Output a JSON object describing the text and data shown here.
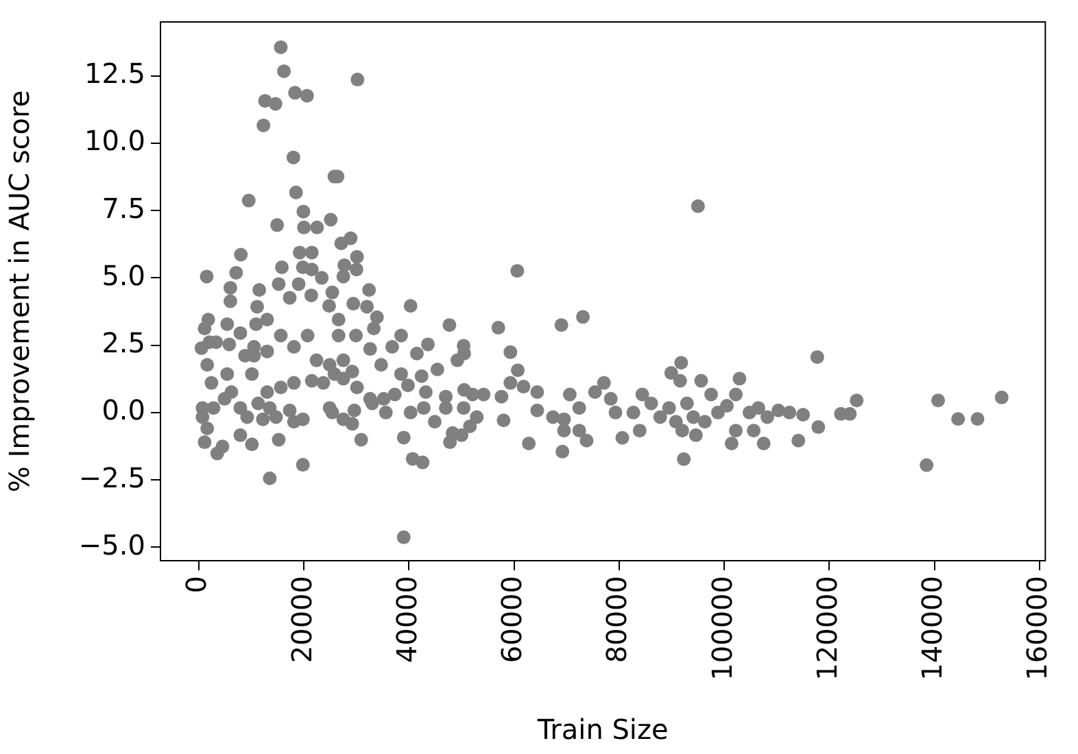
{
  "chart_data": {
    "type": "scatter",
    "xlabel": "Train Size",
    "ylabel": "% Improvement in AUC score",
    "xlim": [
      -7300,
      161100
    ],
    "ylim": [
      -5.5,
      14.5
    ],
    "xticks": [
      0,
      20000,
      40000,
      60000,
      80000,
      100000,
      120000,
      140000,
      160000
    ],
    "yticks": [
      {
        "value": -5,
        "label": "−5.0"
      },
      {
        "value": -2.5,
        "label": "−2.5"
      },
      {
        "value": 0,
        "label": "0.0"
      },
      2.5,
      {
        "value": 5,
        "label": "5.0"
      },
      7.5,
      {
        "value": 10,
        "label": "10.0"
      },
      12.5
    ],
    "grid": false,
    "legend": false,
    "marker": "circle",
    "series": [
      {
        "color": "#808080",
        "x": [
          15600,
          16200,
          30200,
          12600,
          14600,
          18300,
          20600,
          12300,
          18000,
          25800,
          26400,
          9500,
          18500,
          19900,
          14900,
          20000,
          22500,
          25100,
          27100,
          28900,
          8000,
          19200,
          21500,
          30100,
          1500,
          7100,
          15800,
          19800,
          21500,
          27700,
          30000,
          6000,
          6000,
          11500,
          11100,
          15200,
          17300,
          19000,
          21400,
          23400,
          25400,
          27500,
          32400,
          24800,
          29400,
          32000,
          40300,
          47700,
          33900,
          33300,
          26600,
          26600,
          29900,
          38500,
          1800,
          1100,
          5400,
          7900,
          10900,
          13000,
          15600,
          18100,
          20700,
          500,
          2000,
          3300,
          5800,
          8800,
          10500,
          13000,
          10500,
          32600,
          36800,
          43600,
          50500,
          41500,
          1600,
          10100,
          22400,
          24900,
          27500,
          29200,
          34700,
          38500,
          42400,
          45400,
          49200,
          2400,
          5400,
          13000,
          15600,
          18100,
          21500,
          23700,
          25800,
          27500,
          30100,
          32600,
          35200,
          37300,
          39800,
          43200,
          47000,
          50500,
          700,
          700,
          2800,
          4900,
          6200,
          7900,
          9200,
          11300,
          13500,
          14700,
          17300,
          19800,
          25400,
          27500,
          29600,
          33000,
          35600,
          40300,
          42800,
          44900,
          47000,
          48300,
          50000,
          1600,
          1100,
          4500,
          3500,
          7900,
          10100,
          15200,
          12200,
          18100,
          24900,
          29200,
          30900,
          19800,
          13500,
          39000,
          40700,
          42600,
          39000,
          95000,
          60600,
          57000,
          69000,
          73100,
          50400,
          59300,
          60700,
          59300,
          61800,
          64400,
          91800,
          89900,
          91600,
          95600,
          102900,
          117700,
          125200,
          122200,
          123900,
          140700,
          144500,
          148200,
          152800,
          138500,
          117900,
          114100,
          107500,
          101400,
          92300,
          80600,
          73800,
          69200,
          62800,
          58000,
          50400,
          52100,
          54200,
          47800,
          51600,
          52900,
          57600,
          64400,
          67400,
          69500,
          69500,
          70600,
          72400,
          72400,
          75400,
          77100,
          78400,
          79300,
          82700,
          84400,
          86100,
          83900,
          87800,
          89500,
          90800,
          92000,
          92900,
          94100,
          94600,
          96300,
          97500,
          98800,
          100500,
          102200,
          102200,
          104800,
          105600,
          106500,
          108200,
          110300,
          112400,
          115000
        ],
        "values": [
          13.56,
          12.67,
          12.36,
          11.57,
          11.46,
          11.87,
          11.76,
          10.66,
          9.47,
          8.76,
          8.76,
          7.87,
          8.17,
          7.46,
          6.96,
          6.87,
          6.87,
          7.16,
          6.28,
          6.47,
          5.86,
          5.94,
          5.94,
          5.78,
          5.05,
          5.19,
          5.39,
          5.39,
          5.31,
          5.47,
          5.31,
          4.63,
          4.13,
          4.55,
          3.93,
          4.77,
          4.26,
          4.77,
          4.35,
          5.0,
          4.46,
          5.05,
          4.55,
          3.96,
          4.04,
          3.93,
          3.96,
          3.25,
          3.54,
          3.12,
          3.45,
          2.86,
          2.86,
          2.86,
          3.45,
          3.12,
          3.28,
          2.95,
          3.28,
          3.45,
          2.86,
          2.44,
          2.86,
          2.39,
          2.61,
          2.61,
          2.53,
          2.11,
          2.44,
          2.27,
          2.11,
          2.36,
          2.44,
          2.53,
          2.19,
          2.19,
          1.77,
          1.43,
          1.94,
          1.77,
          1.94,
          1.52,
          1.77,
          1.43,
          1.35,
          1.6,
          1.94,
          1.1,
          1.43,
          0.76,
          0.93,
          1.1,
          1.18,
          1.1,
          1.43,
          1.26,
          0.93,
          0.51,
          0.51,
          0.67,
          1.01,
          0.76,
          0.59,
          0.84,
          0.17,
          -0.17,
          0.17,
          0.51,
          0.76,
          0.17,
          -0.17,
          0.34,
          0.17,
          -0.17,
          0.08,
          -0.25,
          0.0,
          -0.25,
          0.08,
          0.34,
          0.0,
          0.0,
          0.17,
          -0.34,
          0.17,
          -0.76,
          -0.84,
          -0.59,
          -1.1,
          -1.26,
          -1.52,
          -0.84,
          -1.18,
          -1.01,
          -0.25,
          -0.34,
          0.17,
          -0.42,
          -1.01,
          -1.94,
          -2.44,
          -0.93,
          -1.72,
          -1.85,
          -4.63,
          7.66,
          5.26,
          3.15,
          3.25,
          3.55,
          2.48,
          2.24,
          1.57,
          1.1,
          0.96,
          0.76,
          1.85,
          1.47,
          1.18,
          1.18,
          1.26,
          2.06,
          0.45,
          -0.05,
          -0.05,
          0.45,
          -0.24,
          -0.24,
          0.56,
          -1.95,
          -0.54,
          -1.04,
          -1.15,
          -1.15,
          -1.73,
          -0.94,
          -1.04,
          -1.45,
          -1.15,
          -0.29,
          0.17,
          0.67,
          0.67,
          -1.1,
          -0.51,
          -0.17,
          0.59,
          0.08,
          -0.17,
          -0.25,
          -0.67,
          0.67,
          -0.67,
          0.17,
          0.76,
          1.1,
          0.51,
          0.0,
          0.0,
          0.67,
          0.34,
          -0.67,
          -0.17,
          0.17,
          -0.34,
          -0.67,
          0.34,
          -0.17,
          -0.84,
          -0.34,
          0.67,
          0.0,
          0.25,
          0.67,
          -0.67,
          0.0,
          -0.67,
          0.17,
          -0.17,
          0.08,
          0.0,
          -0.08
        ]
      }
    ]
  }
}
